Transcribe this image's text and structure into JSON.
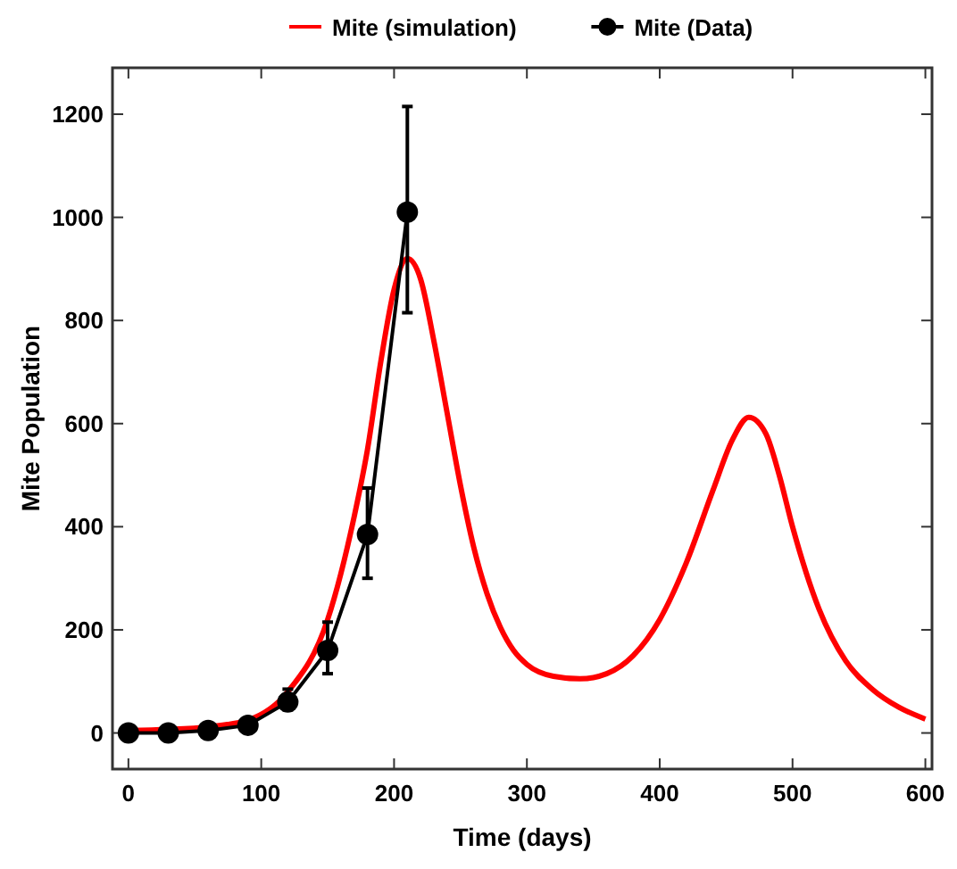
{
  "chart_data": {
    "type": "line",
    "xlabel": "Time (days)",
    "ylabel": "Mite Population",
    "xlim": [
      -12,
      605
    ],
    "ylim": [
      -70,
      1290
    ],
    "xticks": [
      0,
      100,
      200,
      300,
      400,
      500,
      600
    ],
    "yticks": [
      0,
      200,
      400,
      600,
      800,
      1000,
      1200
    ],
    "legend": "top",
    "grid": false,
    "series": [
      {
        "name": "Mite (simulation)",
        "color": "#ff0000",
        "marker": "none",
        "x": [
          0,
          30,
          60,
          90,
          120,
          150,
          170,
          180,
          190,
          200,
          210,
          220,
          230,
          240,
          250,
          260,
          270,
          280,
          290,
          300,
          320,
          340,
          360,
          380,
          400,
          420,
          440,
          455,
          467,
          480,
          490,
          500,
          520,
          540,
          560,
          580,
          600
        ],
        "values": [
          5,
          7,
          12,
          25,
          80,
          220,
          420,
          550,
          720,
          860,
          920,
          880,
          760,
          620,
          480,
          360,
          270,
          205,
          160,
          133,
          110,
          105,
          115,
          150,
          220,
          330,
          470,
          570,
          612,
          580,
          500,
          400,
          240,
          140,
          85,
          50,
          27
        ]
      },
      {
        "name": "Mite (Data)",
        "color": "#000000",
        "marker": "circle",
        "x": [
          0,
          30,
          60,
          90,
          120,
          150,
          180,
          210
        ],
        "values": [
          0,
          0,
          5,
          15,
          60,
          160,
          385,
          1010
        ],
        "errors": [
          null,
          null,
          null,
          null,
          [
            45,
            85
          ],
          [
            115,
            215
          ],
          [
            300,
            475
          ],
          [
            815,
            1215
          ]
        ]
      }
    ]
  }
}
